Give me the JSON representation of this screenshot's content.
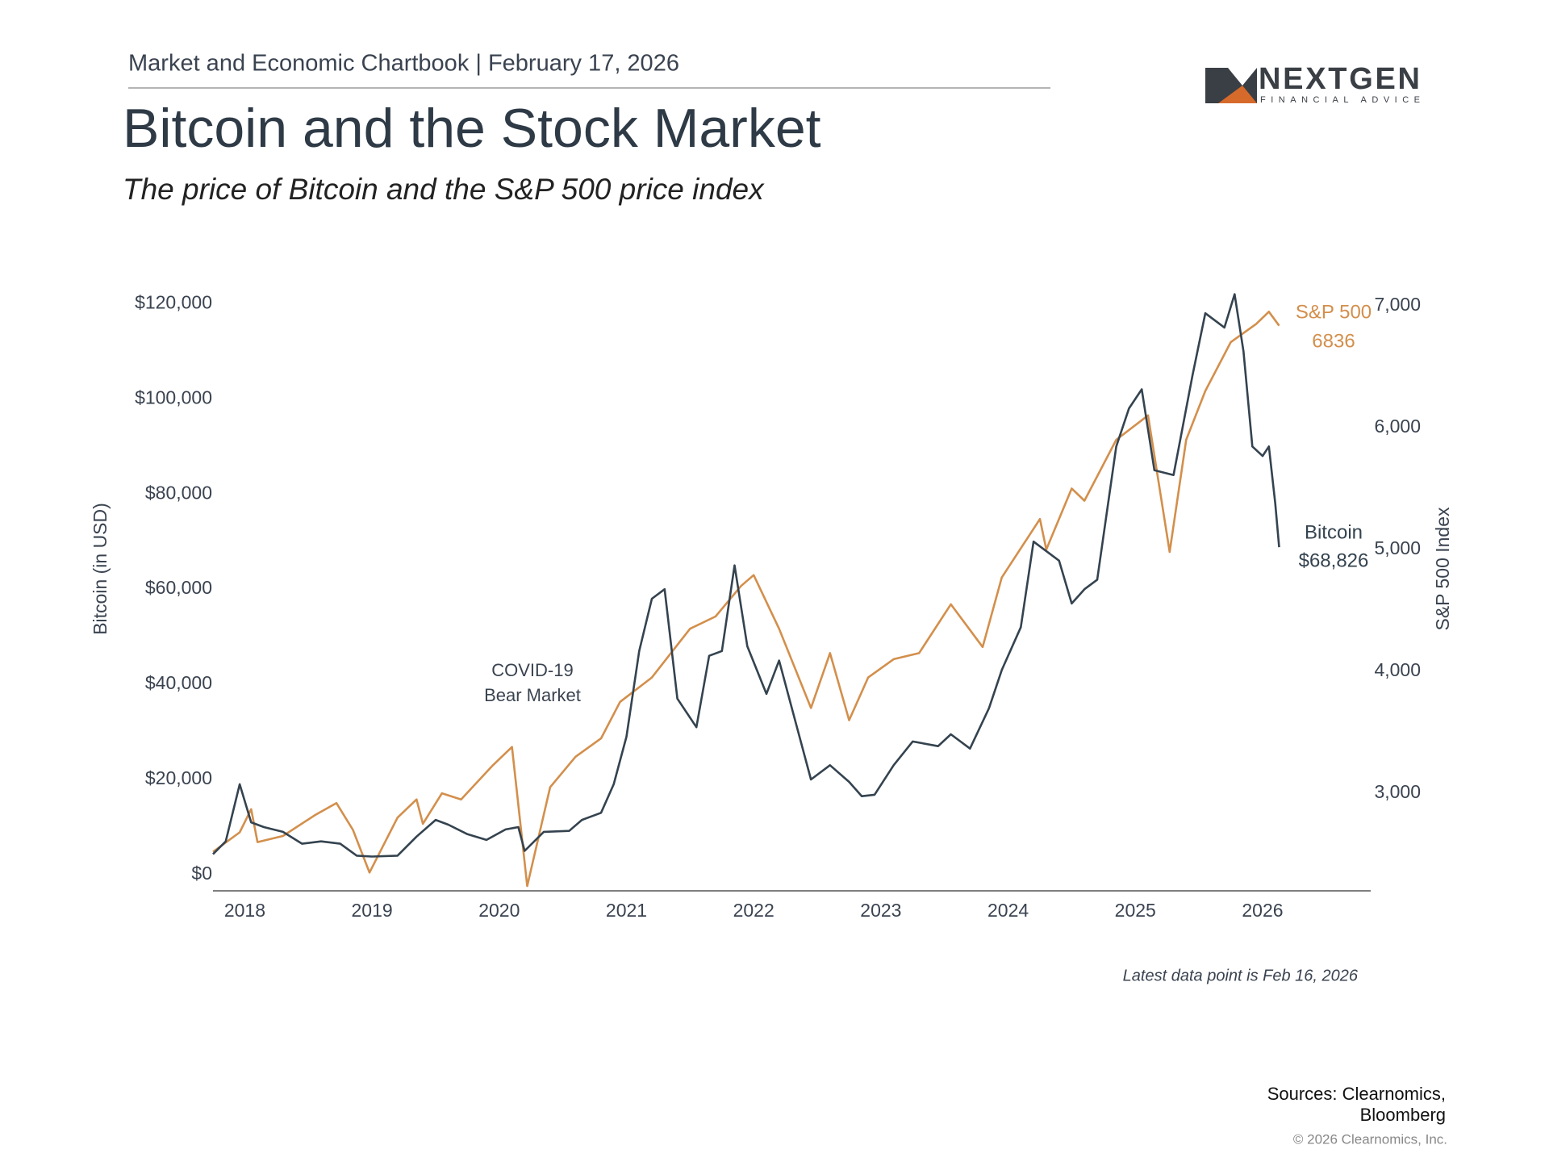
{
  "header": "Market and Economic Chartbook | February 17, 2026",
  "logo": {
    "name": "NEXTGEN",
    "tagline": "FINANCIAL ADVICE"
  },
  "chart_data": {
    "type": "line",
    "title": "Bitcoin and the Stock Market",
    "subtitle": "The price of Bitcoin and the S&P 500 price index",
    "ylabel": "Bitcoin (in USD)",
    "y2label": "S&P 500 Index",
    "xlim": [
      2017.75,
      2026.85
    ],
    "xticks": [
      2018,
      2019,
      2020,
      2021,
      2022,
      2023,
      2024,
      2025,
      2026
    ],
    "ylim": [
      -3400,
      126000
    ],
    "yticks": [
      {
        "value": 0,
        "label": "$0"
      },
      {
        "value": 20000,
        "label": "$20,000"
      },
      {
        "value": 40000,
        "label": "$40,000"
      },
      {
        "value": 60000,
        "label": "$60,000"
      },
      {
        "value": 80000,
        "label": "$80,000"
      },
      {
        "value": 100000,
        "label": "$100,000"
      },
      {
        "value": 120000,
        "label": "$120,000"
      }
    ],
    "y2lim": [
      2200,
      7250
    ],
    "y2ticks": [
      {
        "value": 3000,
        "label": "3,000"
      },
      {
        "value": 4000,
        "label": "4,000"
      },
      {
        "value": 5000,
        "label": "5,000"
      },
      {
        "value": 6000,
        "label": "6,000"
      },
      {
        "value": 7000,
        "label": "7,000"
      }
    ],
    "series": [
      {
        "name": "S&P 500",
        "color": "#d38f4c",
        "axis": "y2",
        "last_label": "6836",
        "x": [
          2017.75,
          2017.96,
          2018.05,
          2018.1,
          2018.3,
          2018.55,
          2018.72,
          2018.85,
          2018.98,
          2019.2,
          2019.35,
          2019.4,
          2019.55,
          2019.7,
          2019.95,
          2020.1,
          2020.22,
          2020.4,
          2020.6,
          2020.8,
          2020.95,
          2021.2,
          2021.5,
          2021.7,
          2021.9,
          2022.0,
          2022.2,
          2022.45,
          2022.6,
          2022.75,
          2022.9,
          2023.1,
          2023.3,
          2023.55,
          2023.8,
          2023.95,
          2024.25,
          2024.3,
          2024.5,
          2024.6,
          2024.85,
          2025.1,
          2025.27,
          2025.4,
          2025.55,
          2025.75,
          2025.95,
          2026.05,
          2026.13
        ],
        "values": [
          2520,
          2680,
          2870,
          2600,
          2650,
          2820,
          2920,
          2700,
          2350,
          2800,
          2950,
          2750,
          3000,
          2950,
          3230,
          3380,
          2240,
          3050,
          3300,
          3450,
          3750,
          3950,
          4350,
          4450,
          4700,
          4790,
          4350,
          3700,
          4150,
          3600,
          3950,
          4100,
          4150,
          4550,
          4200,
          4770,
          5250,
          5000,
          5500,
          5400,
          5900,
          6100,
          4980,
          5900,
          6300,
          6700,
          6850,
          6950,
          6836
        ]
      },
      {
        "name": "Bitcoin",
        "color": "#34434f",
        "axis": "y",
        "last_label": "$68,826",
        "x": [
          2017.75,
          2017.85,
          2017.96,
          2018.05,
          2018.15,
          2018.3,
          2018.45,
          2018.6,
          2018.75,
          2018.88,
          2019.0,
          2019.2,
          2019.35,
          2019.5,
          2019.6,
          2019.75,
          2019.9,
          2020.05,
          2020.15,
          2020.2,
          2020.35,
          2020.55,
          2020.65,
          2020.8,
          2020.9,
          2021.0,
          2021.1,
          2021.2,
          2021.3,
          2021.4,
          2021.55,
          2021.65,
          2021.75,
          2021.85,
          2021.95,
          2022.1,
          2022.2,
          2022.35,
          2022.45,
          2022.6,
          2022.75,
          2022.85,
          2022.95,
          2023.1,
          2023.25,
          2023.45,
          2023.55,
          2023.7,
          2023.85,
          2023.95,
          2024.1,
          2024.2,
          2024.4,
          2024.5,
          2024.6,
          2024.7,
          2024.85,
          2024.95,
          2025.05,
          2025.15,
          2025.3,
          2025.45,
          2025.55,
          2025.7,
          2025.78,
          2025.85,
          2025.92,
          2026.0,
          2026.05,
          2026.1,
          2026.13
        ],
        "values": [
          4300,
          7000,
          19000,
          11000,
          10000,
          9000,
          6500,
          7000,
          6500,
          4000,
          3800,
          4000,
          8000,
          11500,
          10500,
          8500,
          7300,
          9500,
          10000,
          5000,
          9000,
          9200,
          11500,
          13000,
          19000,
          29000,
          47000,
          58000,
          60000,
          37000,
          31000,
          46000,
          47000,
          65000,
          48000,
          38000,
          45000,
          30000,
          20000,
          23000,
          19500,
          16500,
          16800,
          23000,
          28000,
          27000,
          29500,
          26500,
          35000,
          43000,
          52000,
          70000,
          66000,
          57000,
          60000,
          62000,
          90000,
          98000,
          102000,
          85000,
          84000,
          105000,
          118000,
          115000,
          122000,
          110000,
          90000,
          88000,
          90000,
          78000,
          68826
        ]
      }
    ],
    "annotation": [
      "COVID-19",
      "Bear Market"
    ],
    "note": "Latest data point is Feb 16, 2026"
  },
  "footer": {
    "sources": [
      "Sources: Clearnomics,",
      "Bloomberg"
    ],
    "copyright": "© 2026 Clearnomics, Inc."
  }
}
